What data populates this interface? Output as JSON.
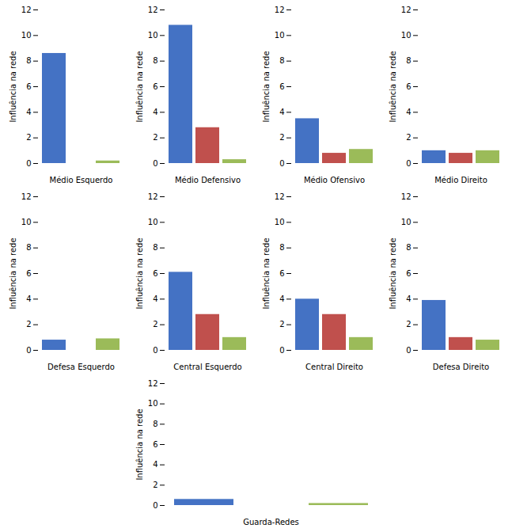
{
  "chart_data": [
    {
      "type": "bar",
      "xlabel": "Médio Esquerdo",
      "ylabel": "Influência na rede",
      "categories": [
        null,
        null,
        null
      ],
      "values": [
        8.6,
        0.0,
        0.2
      ],
      "colors": [
        "#4472C4",
        "#C0504D",
        "#9BBB59"
      ],
      "ylim": [
        0,
        12
      ],
      "yticks": [
        0,
        2,
        4,
        6,
        8,
        10,
        12
      ],
      "tick_labels": "y"
    },
    {
      "type": "bar",
      "xlabel": "Médio Defensivo",
      "ylabel": "Influência na rede",
      "categories": [
        null,
        null,
        null
      ],
      "values": [
        10.8,
        2.8,
        0.3
      ],
      "colors": [
        "#4472C4",
        "#C0504D",
        "#9BBB59"
      ],
      "ylim": [
        0,
        12
      ],
      "yticks": [
        0,
        2,
        4,
        6,
        8,
        10,
        12
      ],
      "tick_labels": "y"
    },
    {
      "type": "bar",
      "xlabel": "Médio Ofensivo",
      "ylabel": "Influência na rede",
      "categories": [
        null,
        null,
        null
      ],
      "values": [
        3.5,
        0.8,
        1.1
      ],
      "colors": [
        "#4472C4",
        "#C0504D",
        "#9BBB59"
      ],
      "ylim": [
        0,
        12
      ],
      "yticks": [
        0,
        2,
        4,
        6,
        8,
        10,
        12
      ],
      "tick_labels": "y"
    },
    {
      "type": "bar",
      "xlabel": "Médio Direito",
      "ylabel": "Influência na rede",
      "categories": [
        null,
        null,
        null
      ],
      "values": [
        1.0,
        0.8,
        1.0
      ],
      "colors": [
        "#4472C4",
        "#C0504D",
        "#9BBB59"
      ],
      "ylim": [
        0,
        12
      ],
      "yticks": [
        0,
        2,
        4,
        6,
        8,
        10,
        12
      ],
      "tick_labels": "y"
    },
    {
      "type": "bar",
      "xlabel": "Defesa Esquerdo",
      "ylabel": "Influência na rede",
      "categories": [
        null,
        null,
        null
      ],
      "values": [
        0.8,
        0.0,
        0.9
      ],
      "colors": [
        "#4472C4",
        "#C0504D",
        "#9BBB59"
      ],
      "ylim": [
        0,
        12
      ],
      "yticks": [
        0,
        2,
        4,
        6,
        8,
        10,
        12
      ],
      "tick_labels": "y"
    },
    {
      "type": "bar",
      "xlabel": "Central Esquerdo",
      "ylabel": "Influência na rede",
      "categories": [
        null,
        null,
        null
      ],
      "values": [
        6.1,
        2.8,
        1.0
      ],
      "colors": [
        "#4472C4",
        "#C0504D",
        "#9BBB59"
      ],
      "ylim": [
        0,
        12
      ],
      "yticks": [
        0,
        2,
        4,
        6,
        8,
        10,
        12
      ],
      "tick_labels": "y"
    },
    {
      "type": "bar",
      "xlabel": "Central Direito",
      "ylabel": "Influência na rede",
      "categories": [
        null,
        null,
        null
      ],
      "values": [
        4.0,
        2.8,
        1.0
      ],
      "colors": [
        "#4472C4",
        "#C0504D",
        "#9BBB59"
      ],
      "ylim": [
        0,
        12
      ],
      "yticks": [
        0,
        2,
        4,
        6,
        8,
        10,
        12
      ],
      "tick_labels": "y"
    },
    {
      "type": "bar",
      "xlabel": "Defesa Direito",
      "ylabel": "Influência na rede",
      "categories": [
        null,
        null,
        null
      ],
      "values": [
        3.9,
        1.0,
        0.8
      ],
      "colors": [
        "#4472C4",
        "#C0504D",
        "#9BBB59"
      ],
      "ylim": [
        0,
        12
      ],
      "yticks": [
        0,
        2,
        4,
        6,
        8,
        10,
        12
      ],
      "tick_labels": "y"
    },
    {
      "type": "bar",
      "xlabel": "Guarda-Redes",
      "ylabel": "Influência na rede",
      "categories": [
        null,
        null,
        null
      ],
      "values": [
        0.6,
        0.0,
        0.2
      ],
      "colors": [
        "#4472C4",
        "#C0504D",
        "#9BBB59"
      ],
      "ylim": [
        0,
        12
      ],
      "yticks": [
        0,
        2,
        4,
        6,
        8,
        10,
        12
      ],
      "tick_labels": "y"
    }
  ]
}
